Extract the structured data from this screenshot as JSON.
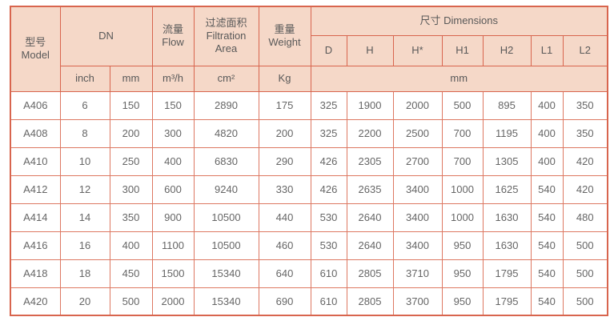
{
  "table": {
    "header": {
      "model": "型号\nModel",
      "dn": "DN",
      "flow": "流量\nFlow",
      "filtration": "过滤面积\nFiltration\nArea",
      "weight": "重量\nWeight",
      "dimensions": "尺寸 Dimensions",
      "dim_cols": [
        "D",
        "H",
        "H*",
        "H1",
        "H2",
        "L1",
        "L2"
      ],
      "units": {
        "inch": "inch",
        "mm": "mm",
        "flow": "m³/h",
        "filtration": "cm²",
        "weight": "Kg",
        "dims": "mm"
      }
    },
    "rows": [
      {
        "model": "A406",
        "values": [
          "6",
          "150",
          "150",
          "2890",
          "175",
          "325",
          "1900",
          "2000",
          "500",
          "895",
          "400",
          "350"
        ]
      },
      {
        "model": "A408",
        "values": [
          "8",
          "200",
          "300",
          "4820",
          "200",
          "325",
          "2200",
          "2500",
          "700",
          "1195",
          "400",
          "350"
        ]
      },
      {
        "model": "A410",
        "values": [
          "10",
          "250",
          "400",
          "6830",
          "290",
          "426",
          "2305",
          "2700",
          "700",
          "1305",
          "400",
          "420"
        ]
      },
      {
        "model": "A412",
        "values": [
          "12",
          "300",
          "600",
          "9240",
          "330",
          "426",
          "2635",
          "3400",
          "1000",
          "1625",
          "540",
          "420"
        ]
      },
      {
        "model": "A414",
        "values": [
          "14",
          "350",
          "900",
          "10500",
          "440",
          "530",
          "2640",
          "3400",
          "1000",
          "1630",
          "540",
          "480"
        ]
      },
      {
        "model": "A416",
        "values": [
          "16",
          "400",
          "1100",
          "10500",
          "460",
          "530",
          "2640",
          "3400",
          "950",
          "1630",
          "540",
          "500"
        ]
      },
      {
        "model": "A418",
        "values": [
          "18",
          "450",
          "1500",
          "15340",
          "640",
          "610",
          "2805",
          "3710",
          "950",
          "1795",
          "540",
          "500"
        ]
      },
      {
        "model": "A420",
        "values": [
          "20",
          "500",
          "2000",
          "15340",
          "690",
          "610",
          "2805",
          "3700",
          "950",
          "1795",
          "540",
          "500"
        ]
      }
    ]
  },
  "colors": {
    "header_bg": "#f5d8c8",
    "grid_border": "#dd7862",
    "outer_border": "#d8654e",
    "header_text": "#595959",
    "body_text": "#666666"
  }
}
